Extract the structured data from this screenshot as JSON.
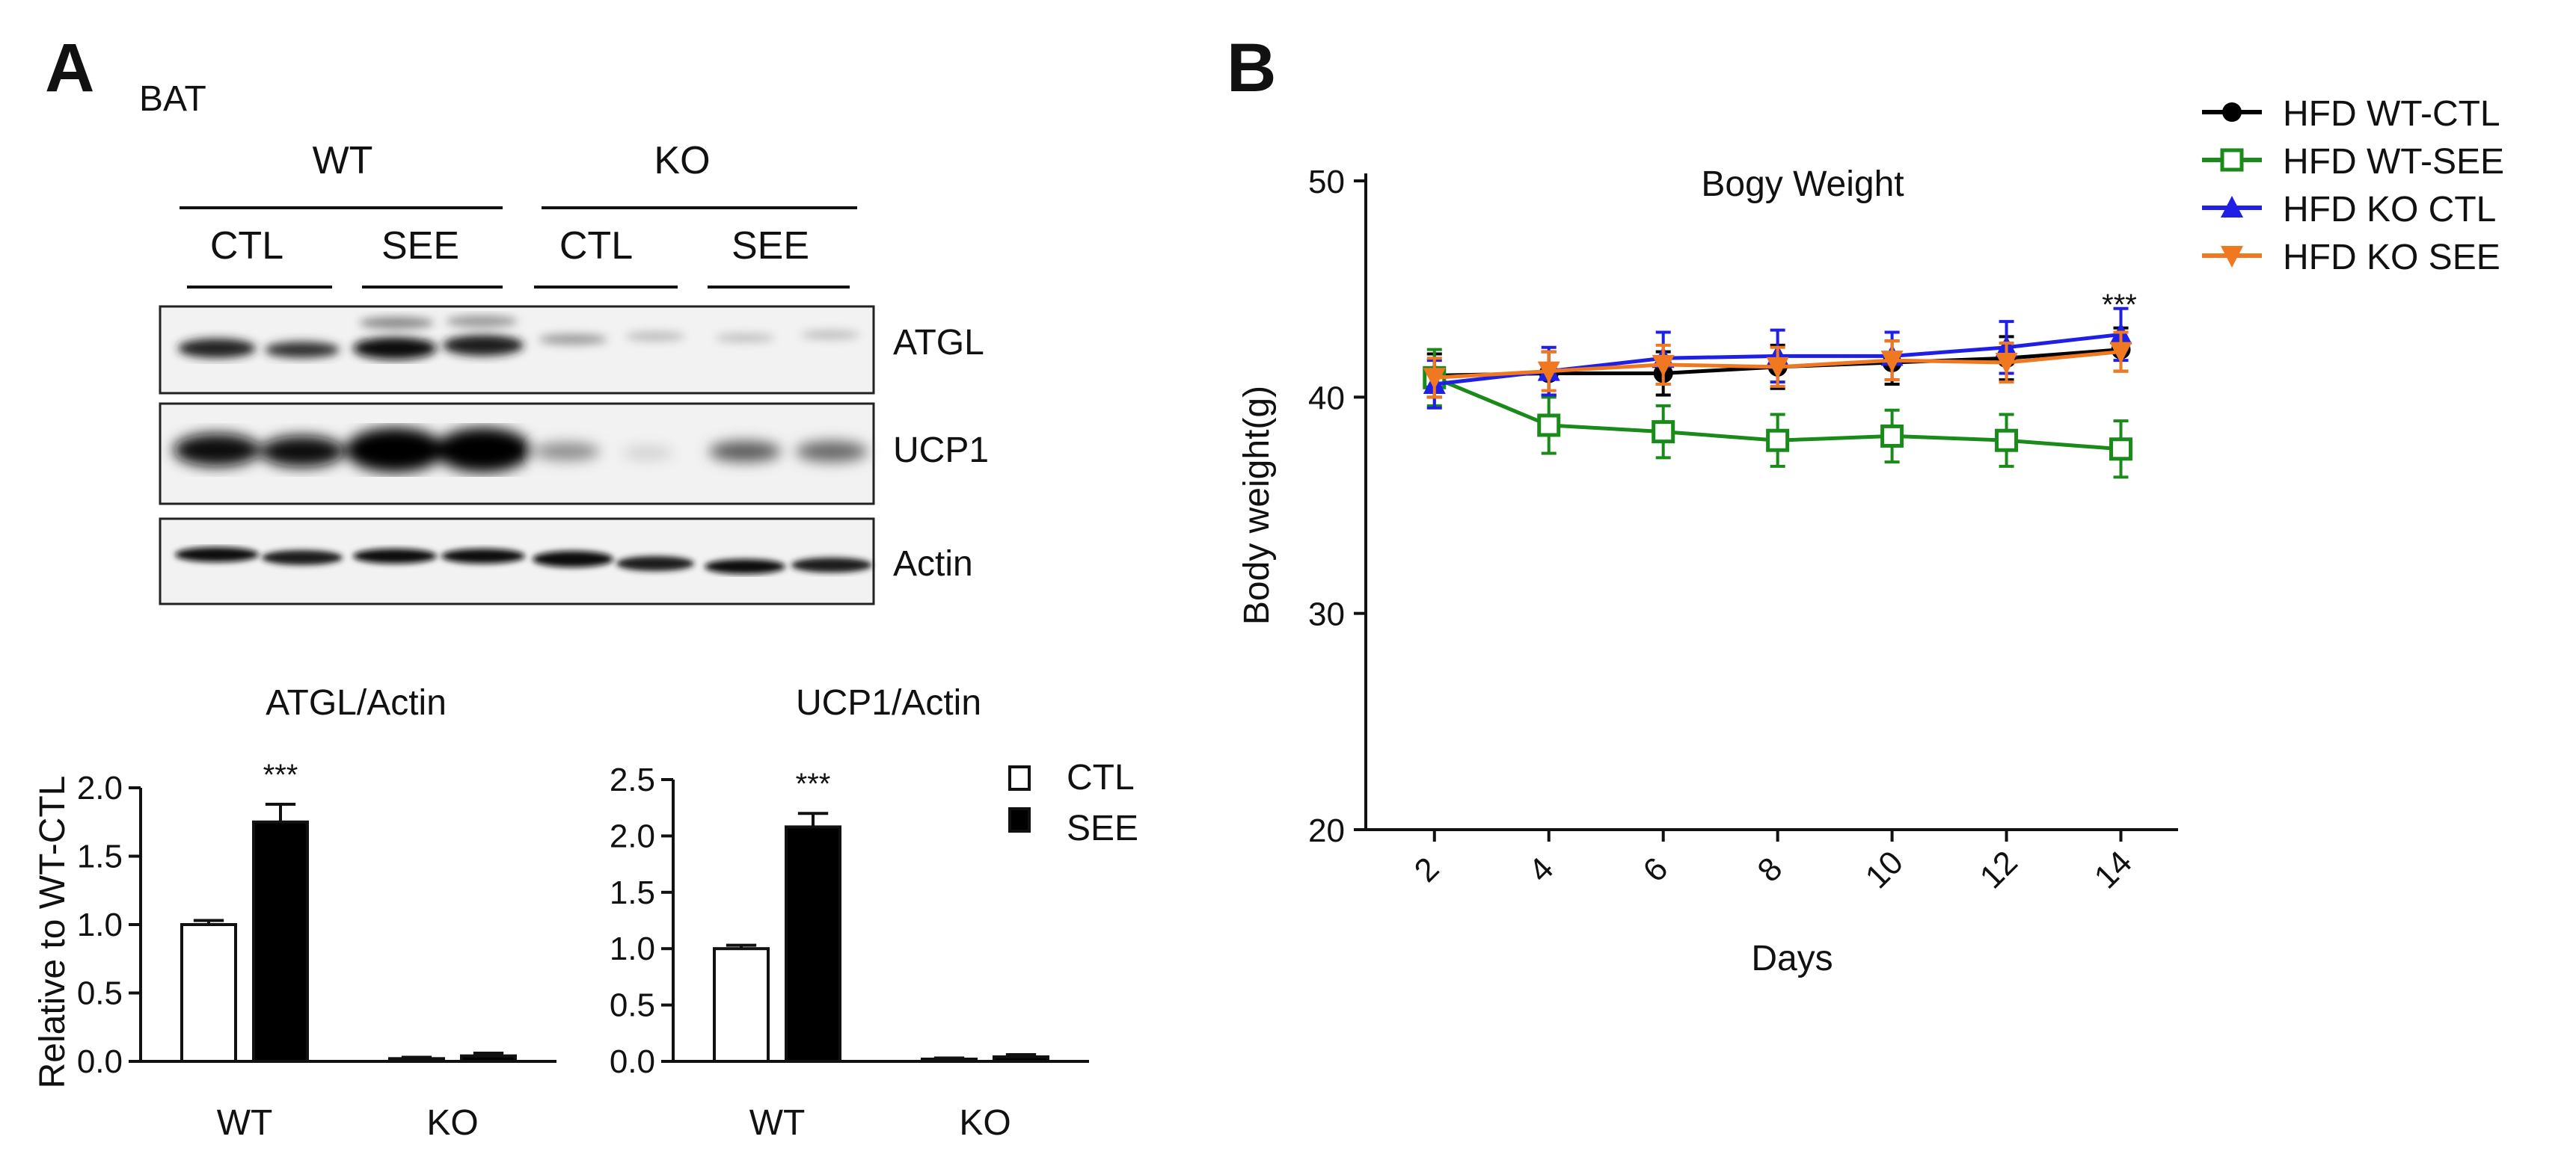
{
  "panel_a": {
    "letter": "A",
    "tissue": "BAT",
    "genotypes": [
      "WT",
      "KO"
    ],
    "treatments": [
      "CTL",
      "SEE",
      "CTL",
      "SEE"
    ],
    "blot_labels": [
      "ATGL",
      "UCP1",
      "Actin"
    ],
    "legend": {
      "ctl": "CTL",
      "see": "SEE"
    }
  },
  "panel_b": {
    "letter": "B"
  },
  "chart_data": [
    {
      "type": "bar",
      "title": "ATGL/Actin",
      "ylabel": "Relative to WT-CTL",
      "xlabel": "",
      "categories": [
        "WT",
        "KO"
      ],
      "series": [
        {
          "name": "CTL",
          "values": [
            1.0,
            0.02
          ],
          "errors": [
            0.03,
            0.01
          ],
          "color": "#ffffff"
        },
        {
          "name": "SEE",
          "values": [
            1.75,
            0.04
          ],
          "errors": [
            0.13,
            0.02
          ],
          "color": "#000000"
        }
      ],
      "ylim": [
        0,
        2.0
      ],
      "yticks": [
        "0.0",
        "0.5",
        "1.0",
        "1.5",
        "2.0"
      ],
      "ytick_values": [
        0,
        0.5,
        1.0,
        1.5,
        2.0
      ],
      "annotation": "***"
    },
    {
      "type": "bar",
      "title": "UCP1/Actin",
      "xlabel": "",
      "categories": [
        "WT",
        "KO"
      ],
      "series": [
        {
          "name": "CTL",
          "values": [
            1.0,
            0.02
          ],
          "errors": [
            0.03,
            0.01
          ],
          "color": "#ffffff"
        },
        {
          "name": "SEE",
          "values": [
            2.08,
            0.04
          ],
          "errors": [
            0.12,
            0.02
          ],
          "color": "#000000"
        }
      ],
      "ylim": [
        0,
        2.5
      ],
      "yticks": [
        "0.0",
        "0.5",
        "1.0",
        "1.5",
        "2.0",
        "2.5"
      ],
      "ytick_values": [
        0,
        0.5,
        1.0,
        1.5,
        2.0,
        2.5
      ],
      "annotation": "***"
    },
    {
      "type": "line",
      "title": "Bogy Weight",
      "xlabel": "Days",
      "ylabel": "Body weight(g)",
      "x": [
        2,
        4,
        6,
        8,
        10,
        12,
        14
      ],
      "xlim": [
        0.8,
        15
      ],
      "ylim": [
        20,
        50
      ],
      "xticks": [
        "2",
        "4",
        "6",
        "8",
        "10",
        "12",
        "14"
      ],
      "yticks": [
        "20",
        "30",
        "40",
        "50"
      ],
      "ytick_values": [
        20,
        30,
        40,
        50
      ],
      "series": [
        {
          "name": "HFD WT-CTL",
          "color": "#000000",
          "marker": "circle",
          "values": [
            41.0,
            41.1,
            41.1,
            41.4,
            41.6,
            41.8,
            42.2
          ],
          "errors": [
            1.0,
            1.0,
            1.0,
            1.0,
            1.0,
            1.0,
            1.0
          ]
        },
        {
          "name": "HFD WT-SEE",
          "color": "#1a8a1a",
          "marker": "square-open",
          "values": [
            40.9,
            38.7,
            38.4,
            38.0,
            38.2,
            38.0,
            37.6
          ],
          "errors": [
            1.3,
            1.3,
            1.2,
            1.2,
            1.2,
            1.2,
            1.3
          ]
        },
        {
          "name": "HFD KO CTL",
          "color": "#1f1fe6",
          "marker": "triangle-up",
          "values": [
            40.6,
            41.2,
            41.8,
            41.9,
            41.9,
            42.3,
            42.9
          ],
          "errors": [
            1.1,
            1.1,
            1.2,
            1.2,
            1.1,
            1.2,
            1.2
          ]
        },
        {
          "name": "HFD KO SEE",
          "color": "#f07820",
          "marker": "triangle-down",
          "values": [
            40.9,
            41.2,
            41.5,
            41.4,
            41.7,
            41.6,
            42.1
          ],
          "errors": [
            0.9,
            0.9,
            0.9,
            0.9,
            0.9,
            0.9,
            0.9
          ]
        }
      ],
      "annotation": "***",
      "legend_position": "top-right outside"
    }
  ]
}
